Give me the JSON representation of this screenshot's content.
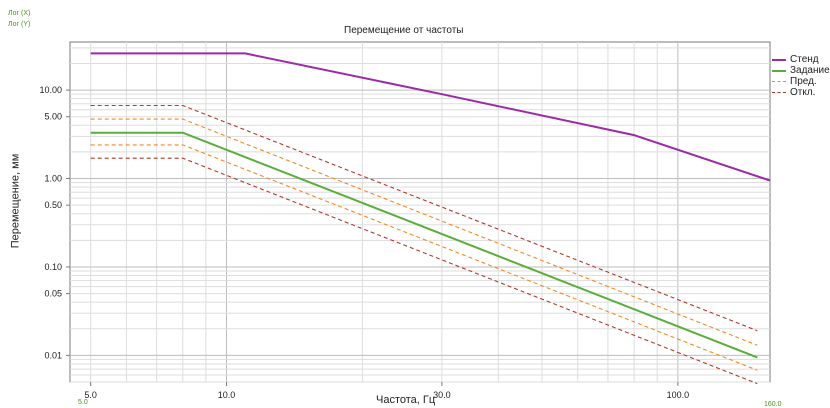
{
  "axis_tags": {
    "x": "Лог (X)",
    "y": "Лог (Y)"
  },
  "chart_data": {
    "type": "line",
    "title": "Перемещение от частоты",
    "xlabel": "Частота, Гц",
    "ylabel": "Перемещение, мм",
    "xscale": "log",
    "yscale": "log",
    "xlim": [
      4.5,
      160
    ],
    "ylim": [
      0.005,
      35
    ],
    "xticks": [
      {
        "value": 5,
        "label": "5.0"
      },
      {
        "value": 10,
        "label": "10.0"
      },
      {
        "value": 30,
        "label": "30.0"
      },
      {
        "value": 100,
        "label": "100.0"
      }
    ],
    "yticks": [
      {
        "value": 10,
        "label": "10.00"
      },
      {
        "value": 5,
        "label": "5.00"
      },
      {
        "value": 1,
        "label": "1.00"
      },
      {
        "value": 0.5,
        "label": "0.50"
      },
      {
        "value": 0.1,
        "label": "0.10"
      },
      {
        "value": 0.05,
        "label": "0.05"
      },
      {
        "value": 0.01,
        "label": "0.01"
      }
    ],
    "corner_labels": {
      "x_min": "5.0",
      "x_max": "160.0"
    },
    "grid": true,
    "legend_position": "right",
    "series": [
      {
        "name": "Стенд",
        "color": "#9c2aa7",
        "dash": "solid",
        "points": [
          [
            5,
            26
          ],
          [
            11,
            26
          ],
          [
            30,
            9
          ],
          [
            80,
            3.1
          ],
          [
            160,
            0.95
          ]
        ]
      },
      {
        "name": "Задание",
        "color": "#5aad3a",
        "dash": "solid",
        "points": [
          [
            5,
            3.3
          ],
          [
            8,
            3.3
          ],
          [
            150,
            0.0095
          ]
        ]
      },
      {
        "name": "Пред.",
        "color": "#f08a24",
        "dash": "dashed",
        "points": [
          [
            5,
            4.7
          ],
          [
            8,
            4.7
          ],
          [
            150,
            0.013
          ]
        ]
      },
      {
        "name": "",
        "color": "#f08a24",
        "dash": "dashed",
        "points": [
          [
            5,
            2.4
          ],
          [
            8,
            2.4
          ],
          [
            150,
            0.0068
          ]
        ]
      },
      {
        "name": "Откл.",
        "color": "#b13a2d",
        "dash": "dashed",
        "points": [
          [
            5,
            6.7
          ],
          [
            8,
            6.7
          ],
          [
            150,
            0.019
          ]
        ]
      },
      {
        "name": "",
        "color": "#b13a2d",
        "dash": "dashed",
        "points": [
          [
            5,
            1.7
          ],
          [
            8,
            1.7
          ],
          [
            150,
            0.0048
          ]
        ]
      }
    ]
  }
}
